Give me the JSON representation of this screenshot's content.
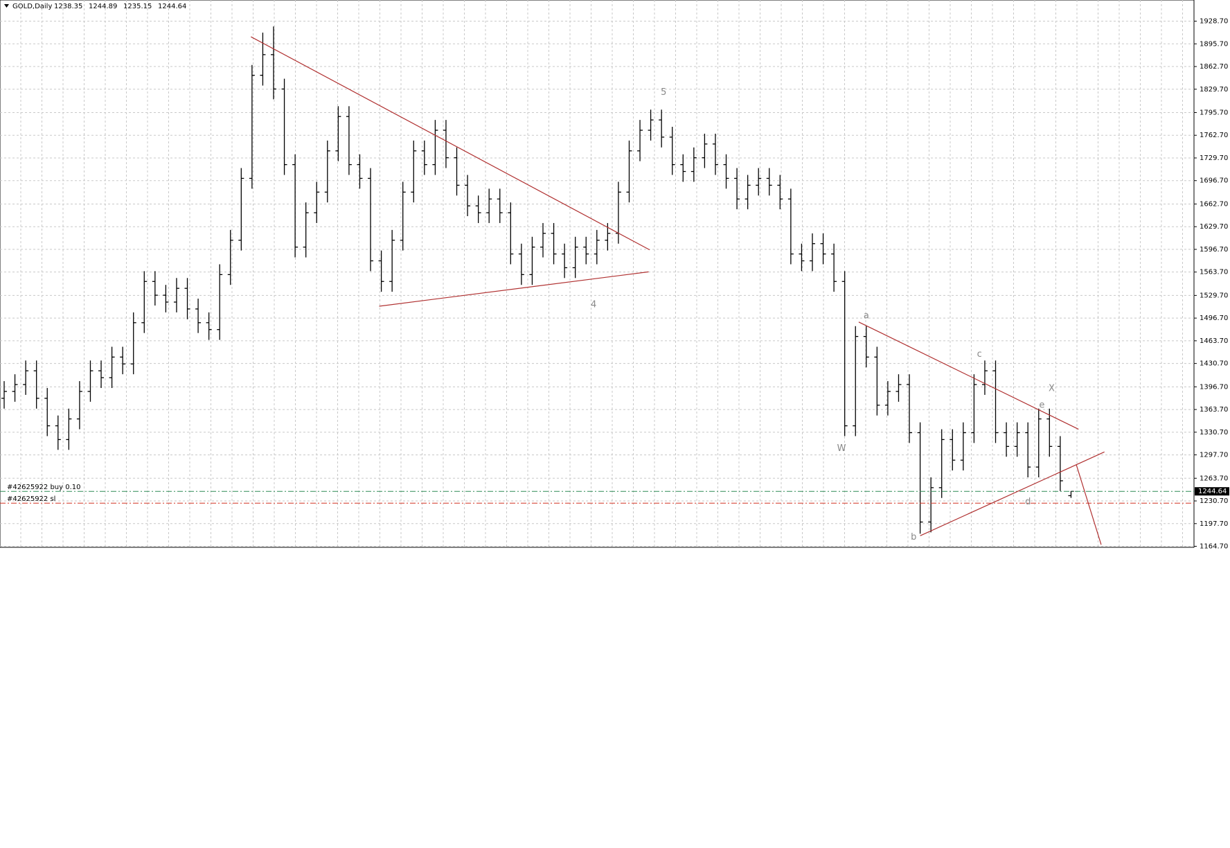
{
  "chart_data": {
    "type": "ohlc",
    "title": "GOLD,Daily",
    "open": [
      1380,
      1390,
      1400,
      1420,
      1380,
      1340,
      1320,
      1350,
      1390,
      1420,
      1410,
      1440,
      1430,
      1490,
      1550,
      1530,
      1520,
      1540,
      1510,
      1490,
      1480,
      1560,
      1610,
      1700,
      1850,
      1880,
      1830,
      1720,
      1600,
      1650,
      1680,
      1740,
      1790,
      1720,
      1700,
      1580,
      1550,
      1610,
      1680,
      1740,
      1720,
      1770,
      1730,
      1690,
      1660,
      1650,
      1670,
      1650,
      1590,
      1560,
      1600,
      1620,
      1590,
      1570,
      1600,
      1590,
      1610,
      1620,
      1680,
      1740,
      1770,
      1785,
      1760,
      1720,
      1710,
      1730,
      1750,
      1720,
      1700,
      1670,
      1690,
      1700,
      1690,
      1670,
      1590,
      1580,
      1605,
      1590,
      1550,
      1340,
      1470,
      1440,
      1370,
      1390,
      1400,
      1330,
      1200,
      1250,
      1320,
      1290,
      1330,
      1400,
      1420,
      1330,
      1310,
      1330,
      1280,
      1350,
      1310,
      1238.35
    ],
    "high": [
      1405,
      1415,
      1435,
      1435,
      1395,
      1355,
      1365,
      1405,
      1435,
      1435,
      1455,
      1455,
      1505,
      1565,
      1565,
      1545,
      1555,
      1555,
      1525,
      1505,
      1575,
      1625,
      1715,
      1865,
      1912,
      1921,
      1845,
      1735,
      1665,
      1695,
      1755,
      1805,
      1805,
      1735,
      1715,
      1595,
      1625,
      1695,
      1755,
      1755,
      1785,
      1785,
      1745,
      1705,
      1675,
      1685,
      1685,
      1665,
      1605,
      1615,
      1635,
      1635,
      1605,
      1615,
      1615,
      1625,
      1635,
      1695,
      1755,
      1785,
      1800,
      1800,
      1775,
      1735,
      1745,
      1765,
      1765,
      1735,
      1715,
      1705,
      1715,
      1715,
      1705,
      1685,
      1605,
      1620,
      1620,
      1605,
      1565,
      1485,
      1485,
      1455,
      1405,
      1415,
      1415,
      1345,
      1265,
      1335,
      1335,
      1345,
      1415,
      1435,
      1435,
      1345,
      1345,
      1345,
      1365,
      1365,
      1325,
      1244.89
    ],
    "low": [
      1365,
      1375,
      1385,
      1365,
      1325,
      1305,
      1305,
      1335,
      1375,
      1395,
      1395,
      1415,
      1415,
      1475,
      1515,
      1505,
      1505,
      1495,
      1475,
      1465,
      1465,
      1545,
      1595,
      1685,
      1835,
      1815,
      1705,
      1585,
      1585,
      1635,
      1665,
      1725,
      1705,
      1685,
      1565,
      1535,
      1535,
      1595,
      1665,
      1705,
      1705,
      1715,
      1675,
      1645,
      1635,
      1635,
      1635,
      1575,
      1545,
      1545,
      1585,
      1575,
      1555,
      1555,
      1575,
      1575,
      1595,
      1605,
      1665,
      1725,
      1755,
      1745,
      1705,
      1695,
      1695,
      1715,
      1705,
      1685,
      1655,
      1655,
      1675,
      1675,
      1655,
      1575,
      1565,
      1565,
      1575,
      1535,
      1325,
      1325,
      1425,
      1355,
      1355,
      1375,
      1315,
      1183,
      1185,
      1235,
      1275,
      1275,
      1315,
      1385,
      1315,
      1295,
      1295,
      1265,
      1265,
      1295,
      1245,
      1235.15
    ],
    "close": [
      1390,
      1400,
      1420,
      1380,
      1340,
      1320,
      1350,
      1390,
      1420,
      1410,
      1440,
      1430,
      1490,
      1550,
      1530,
      1520,
      1540,
      1510,
      1490,
      1480,
      1560,
      1610,
      1700,
      1850,
      1880,
      1830,
      1720,
      1600,
      1650,
      1680,
      1740,
      1790,
      1720,
      1700,
      1580,
      1550,
      1610,
      1680,
      1740,
      1720,
      1770,
      1730,
      1690,
      1660,
      1650,
      1670,
      1650,
      1590,
      1560,
      1600,
      1620,
      1590,
      1570,
      1600,
      1590,
      1610,
      1620,
      1680,
      1740,
      1770,
      1785,
      1760,
      1720,
      1710,
      1730,
      1750,
      1720,
      1700,
      1670,
      1690,
      1700,
      1690,
      1670,
      1590,
      1580,
      1605,
      1590,
      1550,
      1340,
      1470,
      1440,
      1370,
      1390,
      1400,
      1330,
      1200,
      1250,
      1320,
      1290,
      1330,
      1400,
      1420,
      1330,
      1310,
      1330,
      1280,
      1350,
      1310,
      1260,
      1244.64
    ],
    "color": "#000000",
    "ylim": [
      1163.2,
      1959.5
    ],
    "yticks": [
      {
        "value": 1928.7,
        "label": "1928.70"
      },
      {
        "value": 1895.7,
        "label": "1895.70"
      },
      {
        "value": 1862.7,
        "label": "1862.70"
      },
      {
        "value": 1829.7,
        "label": "1829.70"
      },
      {
        "value": 1795.7,
        "label": "1795.70"
      },
      {
        "value": 1762.7,
        "label": "1762.70"
      },
      {
        "value": 1729.7,
        "label": "1729.70"
      },
      {
        "value": 1696.7,
        "label": "1696.70"
      },
      {
        "value": 1662.7,
        "label": "1662.70"
      },
      {
        "value": 1629.7,
        "label": "1629.70"
      },
      {
        "value": 1596.7,
        "label": "1596.70"
      },
      {
        "value": 1563.7,
        "label": "1563.70"
      },
      {
        "value": 1529.7,
        "label": "1529.70"
      },
      {
        "value": 1496.7,
        "label": "1496.70"
      },
      {
        "value": 1463.7,
        "label": "1463.70"
      },
      {
        "value": 1430.7,
        "label": "1430.70"
      },
      {
        "value": 1396.7,
        "label": "1396.70"
      },
      {
        "value": 1363.7,
        "label": "1363.70"
      },
      {
        "value": 1330.7,
        "label": "1330.70"
      },
      {
        "value": 1297.7,
        "label": "1297.70"
      },
      {
        "value": 1263.7,
        "label": "1263.70"
      },
      {
        "value": 1230.7,
        "label": "1230.70"
      },
      {
        "value": 1197.7,
        "label": "1197.70"
      },
      {
        "value": 1164.7,
        "label": "1164.70"
      }
    ],
    "grid": true,
    "trendlines": [
      {
        "x": [
          22.9,
          59.9
        ],
        "y": [
          1906,
          1596
        ],
        "color": "#b03030"
      },
      {
        "x": [
          34.8,
          59.8
        ],
        "y": [
          1514,
          1564
        ],
        "color": "#b03030"
      },
      {
        "x": [
          79.3,
          99.7
        ],
        "y": [
          1491,
          1335
        ],
        "color": "#b03030"
      },
      {
        "x": [
          85,
          102.1
        ],
        "y": [
          1180,
          1302
        ],
        "color": "#b03030"
      },
      {
        "x": [
          99.5,
          101.8
        ],
        "y": [
          1283,
          1167
        ],
        "color": "#b03030"
      }
    ],
    "annotations": [
      {
        "text": "5",
        "x": 61.2,
        "y": 1825
      },
      {
        "text": "4",
        "x": 54.7,
        "y": 1516
      },
      {
        "text": "W",
        "x": 77.7,
        "y": 1307
      },
      {
        "text": "a",
        "x": 80,
        "y": 1500
      },
      {
        "text": "b",
        "x": 84.4,
        "y": 1178
      },
      {
        "text": "c",
        "x": 90.5,
        "y": 1444
      },
      {
        "text": "d",
        "x": 95,
        "y": 1229
      },
      {
        "text": "e",
        "x": 96.3,
        "y": 1370
      },
      {
        "text": "X",
        "x": 97.2,
        "y": 1394
      }
    ],
    "orders": [
      {
        "label": "#42625922 buy 0.10",
        "price": 1244.64,
        "color": "#2e8b57"
      },
      {
        "label": "#42625922 sl",
        "price": 1227.5,
        "color": "#d03020"
      }
    ]
  }
}
